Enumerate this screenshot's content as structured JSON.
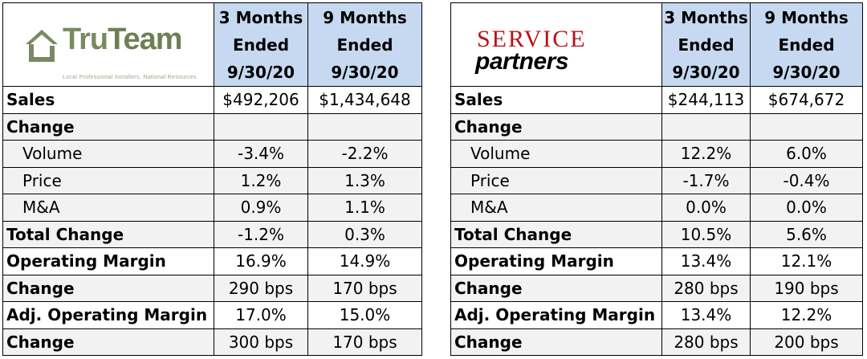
{
  "colors": {
    "header_bg": "#c6d9f0",
    "shaded_row": "#f2f2f2",
    "truteam_green": "#7a8a60",
    "service_red": "#b5121b"
  },
  "truteam": {
    "logo": {
      "name_left": "Tru",
      "name_right": "Team",
      "tagline": "Local Professional Installers, National Resources"
    },
    "col1_header": [
      "3 Months",
      "Ended",
      "9/30/20"
    ],
    "col2_header": [
      "9 Months",
      "Ended",
      "9/30/20"
    ],
    "rows": [
      {
        "label": "Sales",
        "v1": "$492,206",
        "v2": "$1,434,648"
      },
      {
        "label": "Change",
        "v1": "",
        "v2": ""
      },
      {
        "label": "Volume",
        "v1": "-3.4%",
        "v2": "-2.2%"
      },
      {
        "label": "Price",
        "v1": "1.2%",
        "v2": "1.3%"
      },
      {
        "label": "M&A",
        "v1": "0.9%",
        "v2": "1.1%"
      },
      {
        "label": "Total Change",
        "v1": "-1.2%",
        "v2": "0.3%"
      },
      {
        "label": "Operating Margin",
        "v1": "16.9%",
        "v2": "14.9%"
      },
      {
        "label": "Change",
        "v1": "290 bps",
        "v2": "170 bps"
      },
      {
        "label": "Adj. Operating Margin",
        "v1": "17.0%",
        "v2": "15.0%"
      },
      {
        "label": "Change",
        "v1": "300 bps",
        "v2": "170 bps"
      }
    ]
  },
  "service_partners": {
    "logo": {
      "line1": "SERVICE",
      "line2": "partners"
    },
    "col1_header": [
      "3 Months",
      "Ended",
      "9/30/20"
    ],
    "col2_header": [
      "9 Months",
      "Ended",
      "9/30/20"
    ],
    "rows": [
      {
        "label": "Sales",
        "v1": "$244,113",
        "v2": "$674,672"
      },
      {
        "label": "Change",
        "v1": "",
        "v2": ""
      },
      {
        "label": "Volume",
        "v1": "12.2%",
        "v2": "6.0%"
      },
      {
        "label": "Price",
        "v1": "-1.7%",
        "v2": "-0.4%"
      },
      {
        "label": "M&A",
        "v1": "0.0%",
        "v2": "0.0%"
      },
      {
        "label": "Total Change",
        "v1": "10.5%",
        "v2": "5.6%"
      },
      {
        "label": "Operating Margin",
        "v1": "13.4%",
        "v2": "12.1%"
      },
      {
        "label": "Change",
        "v1": "280 bps",
        "v2": "190 bps"
      },
      {
        "label": "Adj. Operating Margin",
        "v1": "13.4%",
        "v2": "12.2%"
      },
      {
        "label": "Change",
        "v1": "280 bps",
        "v2": "200 bps"
      }
    ]
  }
}
